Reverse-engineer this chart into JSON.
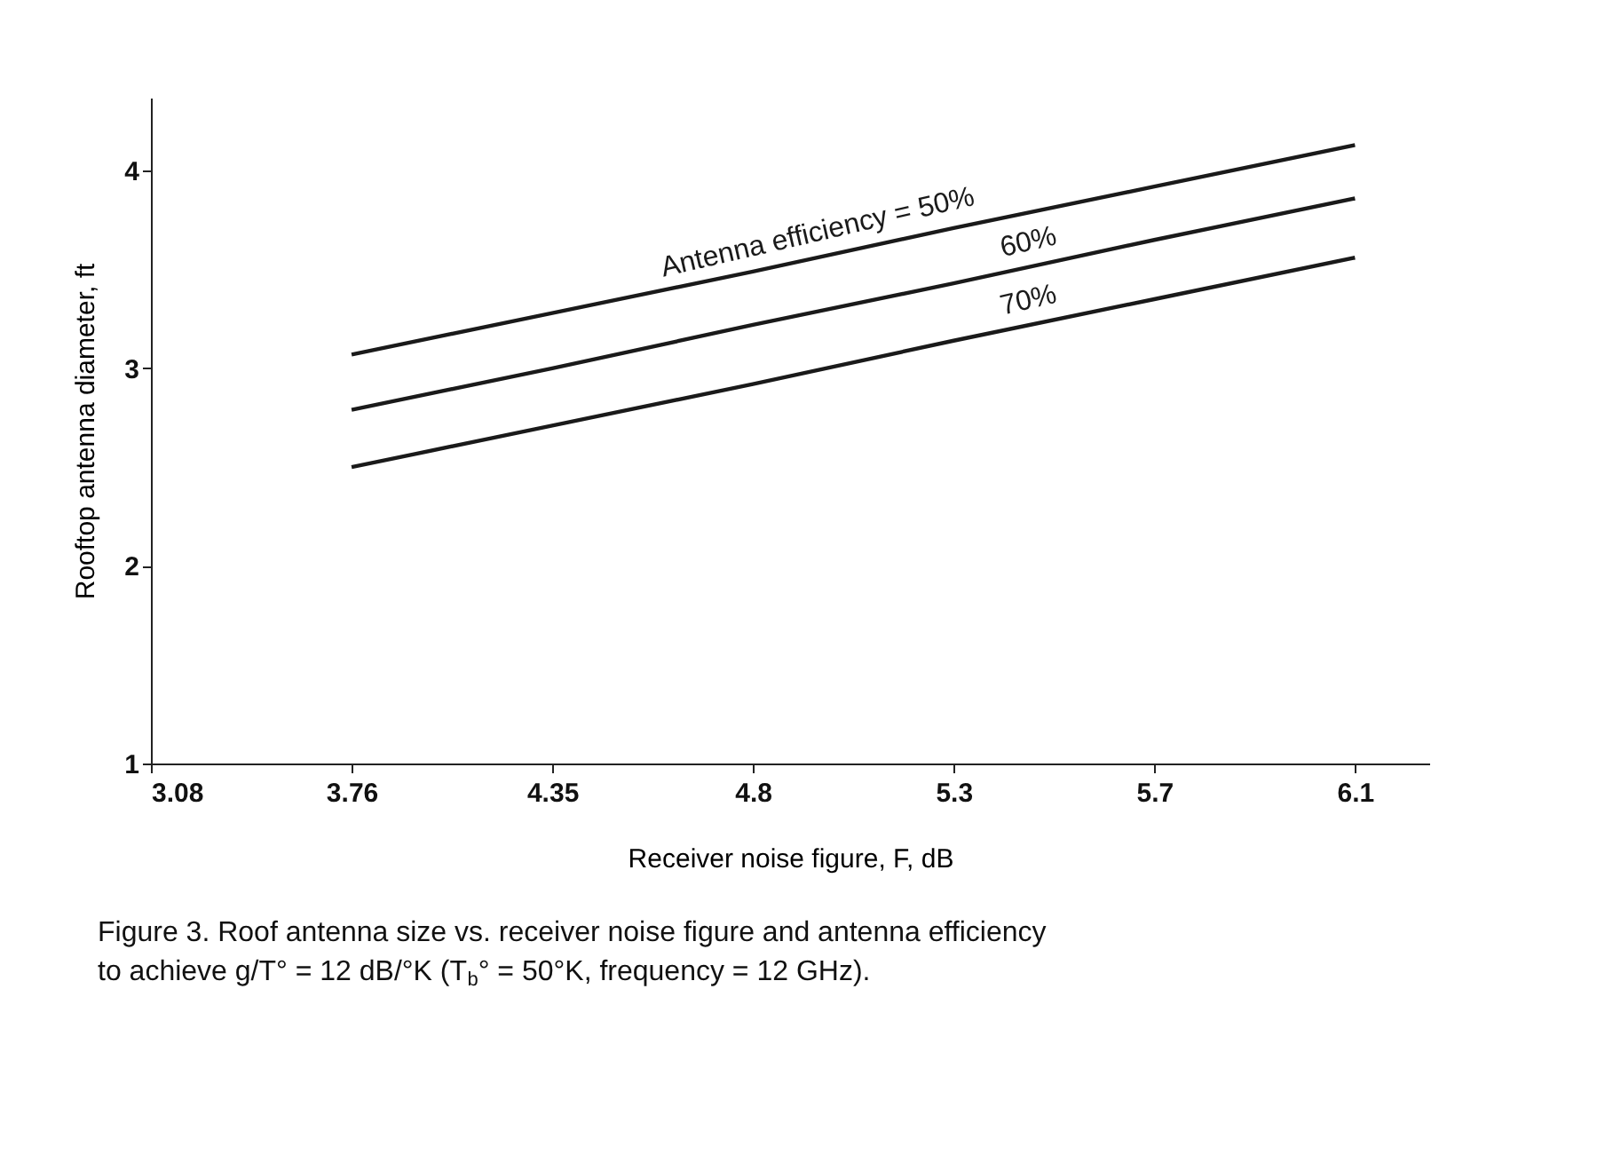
{
  "chart_data": {
    "type": "line",
    "categories": [
      "3.08",
      "3.76",
      "4.35",
      "4.8",
      "5.3",
      "5.7",
      "6.1"
    ],
    "xlabel": "Receiver noise figure, F, dB",
    "ylabel": "Rooftop antenna diameter, ft",
    "ylim": [
      1,
      4.37
    ],
    "yticks": [
      {
        "value": 1,
        "label": "1"
      },
      {
        "value": 2,
        "label": "2"
      },
      {
        "value": 3,
        "label": "3"
      },
      {
        "value": 4,
        "label": "4"
      }
    ],
    "grid": false,
    "legend": false,
    "marker": "none",
    "line_style": "solid",
    "series": [
      {
        "name": "Antenna efficiency = 50%",
        "color": "#1a1a1a",
        "values": [
          null,
          3.07,
          3.28,
          3.49,
          3.71,
          3.92,
          4.13
        ]
      },
      {
        "name": "60%",
        "color": "#1a1a1a",
        "values": [
          null,
          2.79,
          3.0,
          3.22,
          3.43,
          3.65,
          3.86
        ]
      },
      {
        "name": "70%",
        "color": "#1a1a1a",
        "values": [
          null,
          2.5,
          2.71,
          2.92,
          3.14,
          3.35,
          3.56
        ]
      }
    ],
    "annotations": [
      "Figure 3. Roof antenna size vs. receiver noise figure and antenna efficiency to achieve g/T° = 12 dB/°K (T$_{b}$° = 50°K, frequency = 12 GHz)."
    ]
  }
}
